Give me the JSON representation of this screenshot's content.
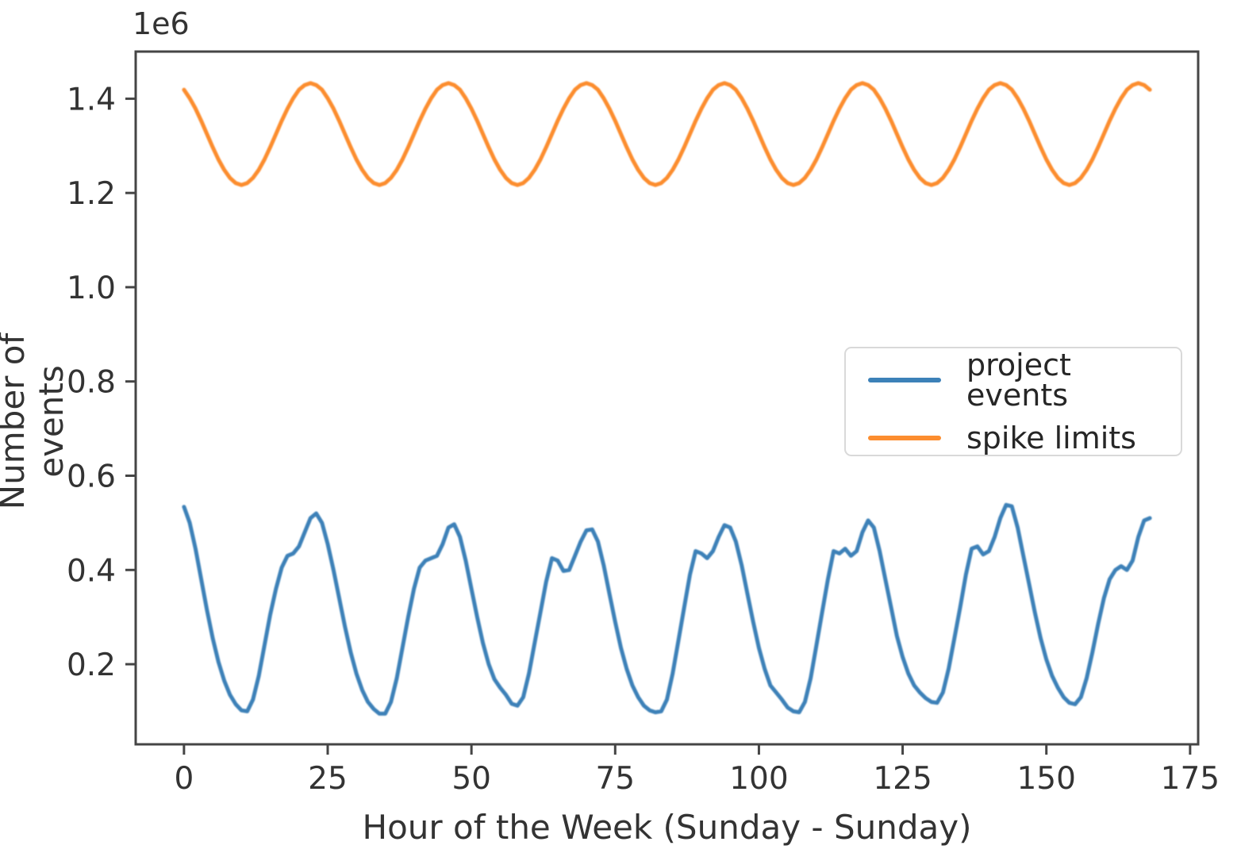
{
  "colors": {
    "background": "#ffffff",
    "spine": "#454545",
    "text": "#333333"
  },
  "chart_data": {
    "type": "line",
    "xlabel": "Hour of the Week (Sunday - Sunday)",
    "ylabel": "Number of events",
    "offset_text": "1e6",
    "unit_scale": "1e6",
    "grid": false,
    "legend_position": "center right",
    "x_start": 0,
    "x_step": 1,
    "x_end": 168,
    "xlim": [
      -8.4,
      176.4
    ],
    "ylim": [
      0.03,
      1.5
    ],
    "xticks": [
      0,
      25,
      50,
      75,
      100,
      125,
      150,
      175
    ],
    "xtick_labels": [
      "0",
      "25",
      "50",
      "75",
      "100",
      "125",
      "150",
      "175"
    ],
    "yticks": [
      0.2,
      0.4,
      0.6,
      0.8,
      1.0,
      1.2,
      1.4
    ],
    "ytick_labels": [
      "0.2",
      "0.4",
      "0.6",
      "0.8",
      "1.0",
      "1.2",
      "1.4"
    ],
    "series": [
      {
        "name": "project events",
        "color": "#3c81b8",
        "values": [
          0.534,
          0.5,
          0.445,
          0.38,
          0.315,
          0.255,
          0.205,
          0.165,
          0.135,
          0.115,
          0.102,
          0.1,
          0.125,
          0.175,
          0.24,
          0.305,
          0.36,
          0.405,
          0.43,
          0.435,
          0.45,
          0.48,
          0.51,
          0.52,
          0.5,
          0.455,
          0.4,
          0.34,
          0.28,
          0.225,
          0.18,
          0.145,
          0.12,
          0.105,
          0.095,
          0.095,
          0.12,
          0.17,
          0.235,
          0.3,
          0.36,
          0.405,
          0.42,
          0.425,
          0.43,
          0.455,
          0.49,
          0.497,
          0.47,
          0.42,
          0.36,
          0.3,
          0.245,
          0.2,
          0.168,
          0.15,
          0.135,
          0.116,
          0.112,
          0.13,
          0.18,
          0.245,
          0.31,
          0.375,
          0.425,
          0.42,
          0.398,
          0.4,
          0.43,
          0.46,
          0.484,
          0.486,
          0.46,
          0.41,
          0.35,
          0.29,
          0.235,
          0.19,
          0.155,
          0.13,
          0.112,
          0.102,
          0.098,
          0.1,
          0.125,
          0.18,
          0.25,
          0.32,
          0.39,
          0.44,
          0.435,
          0.425,
          0.44,
          0.47,
          0.495,
          0.49,
          0.46,
          0.41,
          0.35,
          0.29,
          0.235,
          0.19,
          0.155,
          0.14,
          0.125,
          0.108,
          0.1,
          0.098,
          0.12,
          0.17,
          0.24,
          0.31,
          0.38,
          0.44,
          0.435,
          0.445,
          0.43,
          0.44,
          0.48,
          0.505,
          0.49,
          0.44,
          0.38,
          0.32,
          0.26,
          0.215,
          0.18,
          0.155,
          0.14,
          0.128,
          0.12,
          0.118,
          0.14,
          0.19,
          0.255,
          0.32,
          0.39,
          0.445,
          0.45,
          0.433,
          0.44,
          0.47,
          0.51,
          0.538,
          0.535,
          0.49,
          0.43,
          0.37,
          0.31,
          0.255,
          0.21,
          0.175,
          0.15,
          0.13,
          0.118,
          0.115,
          0.13,
          0.17,
          0.225,
          0.285,
          0.34,
          0.38,
          0.4,
          0.408,
          0.4,
          0.42,
          0.47,
          0.505,
          0.51
        ]
      },
      {
        "name": "spike limits",
        "color": "#fc8d2f",
        "values": [
          1.419,
          1.401,
          1.379,
          1.353,
          1.325,
          1.297,
          1.271,
          1.249,
          1.232,
          1.221,
          1.217,
          1.221,
          1.232,
          1.249,
          1.271,
          1.297,
          1.325,
          1.353,
          1.379,
          1.401,
          1.419,
          1.429,
          1.433,
          1.429,
          1.419,
          1.401,
          1.379,
          1.353,
          1.325,
          1.297,
          1.271,
          1.249,
          1.232,
          1.221,
          1.217,
          1.221,
          1.232,
          1.249,
          1.271,
          1.297,
          1.325,
          1.353,
          1.379,
          1.401,
          1.419,
          1.429,
          1.433,
          1.429,
          1.419,
          1.401,
          1.379,
          1.353,
          1.325,
          1.297,
          1.271,
          1.249,
          1.232,
          1.221,
          1.217,
          1.221,
          1.232,
          1.249,
          1.271,
          1.297,
          1.325,
          1.353,
          1.379,
          1.401,
          1.419,
          1.429,
          1.433,
          1.429,
          1.419,
          1.401,
          1.379,
          1.353,
          1.325,
          1.297,
          1.271,
          1.249,
          1.232,
          1.221,
          1.217,
          1.221,
          1.232,
          1.249,
          1.271,
          1.297,
          1.325,
          1.353,
          1.379,
          1.401,
          1.419,
          1.429,
          1.433,
          1.429,
          1.419,
          1.401,
          1.379,
          1.353,
          1.325,
          1.297,
          1.271,
          1.249,
          1.232,
          1.221,
          1.217,
          1.221,
          1.232,
          1.249,
          1.271,
          1.297,
          1.325,
          1.353,
          1.379,
          1.401,
          1.419,
          1.429,
          1.433,
          1.429,
          1.419,
          1.401,
          1.379,
          1.353,
          1.325,
          1.297,
          1.271,
          1.249,
          1.232,
          1.221,
          1.217,
          1.221,
          1.232,
          1.249,
          1.271,
          1.297,
          1.325,
          1.353,
          1.379,
          1.401,
          1.419,
          1.429,
          1.433,
          1.429,
          1.419,
          1.401,
          1.379,
          1.353,
          1.325,
          1.297,
          1.271,
          1.249,
          1.232,
          1.221,
          1.217,
          1.221,
          1.232,
          1.249,
          1.271,
          1.297,
          1.325,
          1.353,
          1.379,
          1.401,
          1.419,
          1.429,
          1.433,
          1.429,
          1.419
        ]
      }
    ]
  }
}
